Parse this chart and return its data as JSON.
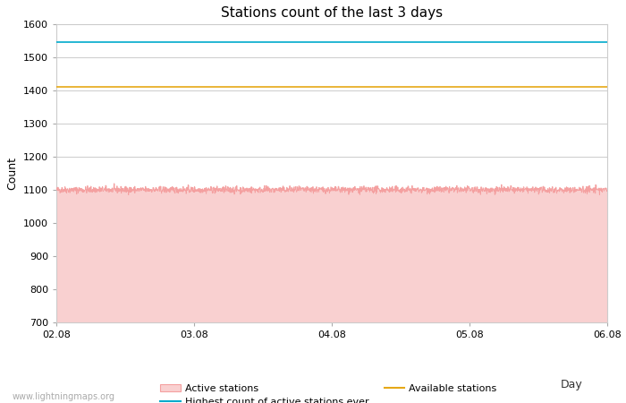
{
  "title": "Stations count of the last 3 days",
  "xlabel": "Day",
  "ylabel": "Count",
  "ylim": [
    700,
    1600
  ],
  "yticks": [
    700,
    800,
    900,
    1000,
    1100,
    1200,
    1300,
    1400,
    1500,
    1600
  ],
  "xlim_days": [
    0,
    4
  ],
  "x_tick_labels": [
    "02.08",
    "03.08",
    "04.08",
    "05.08",
    "06.08"
  ],
  "x_tick_positions": [
    0,
    1,
    2,
    3,
    4
  ],
  "active_stations_value": 1100,
  "active_stations_noise": 5,
  "highest_ever_value": 1545,
  "available_stations_value": 1410,
  "active_color_line": "#f4a0a0",
  "active_color_fill": "#f9d0d0",
  "highest_color": "#00aacc",
  "available_color": "#e6a817",
  "background_color": "#ffffff",
  "grid_color": "#cccccc",
  "watermark": "www.lightningmaps.org",
  "title_fontsize": 11,
  "axis_fontsize": 9,
  "tick_fontsize": 8,
  "legend_fontsize": 8
}
